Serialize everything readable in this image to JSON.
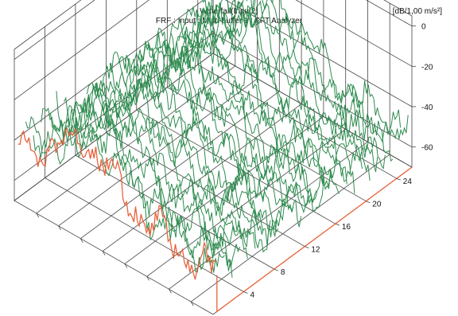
{
  "chart_data": {
    "type": "waterfall-3d",
    "title": "Waterfall(Input2)",
    "subtitle": "FRF : Input : Multi-buffer 1 : FFT Analyzer",
    "unit": "[dB/1,00 m/s²]",
    "z_axis": {
      "ticks": [
        "0",
        "-20",
        "-40",
        "-60"
      ],
      "range": [
        -70,
        5
      ]
    },
    "depth_axis": {
      "ticks": [
        "4",
        "8",
        "12",
        "16",
        "20",
        "24"
      ],
      "range": [
        0,
        26
      ]
    },
    "x_axis": {
      "tick_count": 9
    },
    "grid": true,
    "slices": {
      "count": 26,
      "color": "#2e8b4f"
    },
    "highlight_slice": {
      "index": 0,
      "color": "#e8633c"
    }
  }
}
